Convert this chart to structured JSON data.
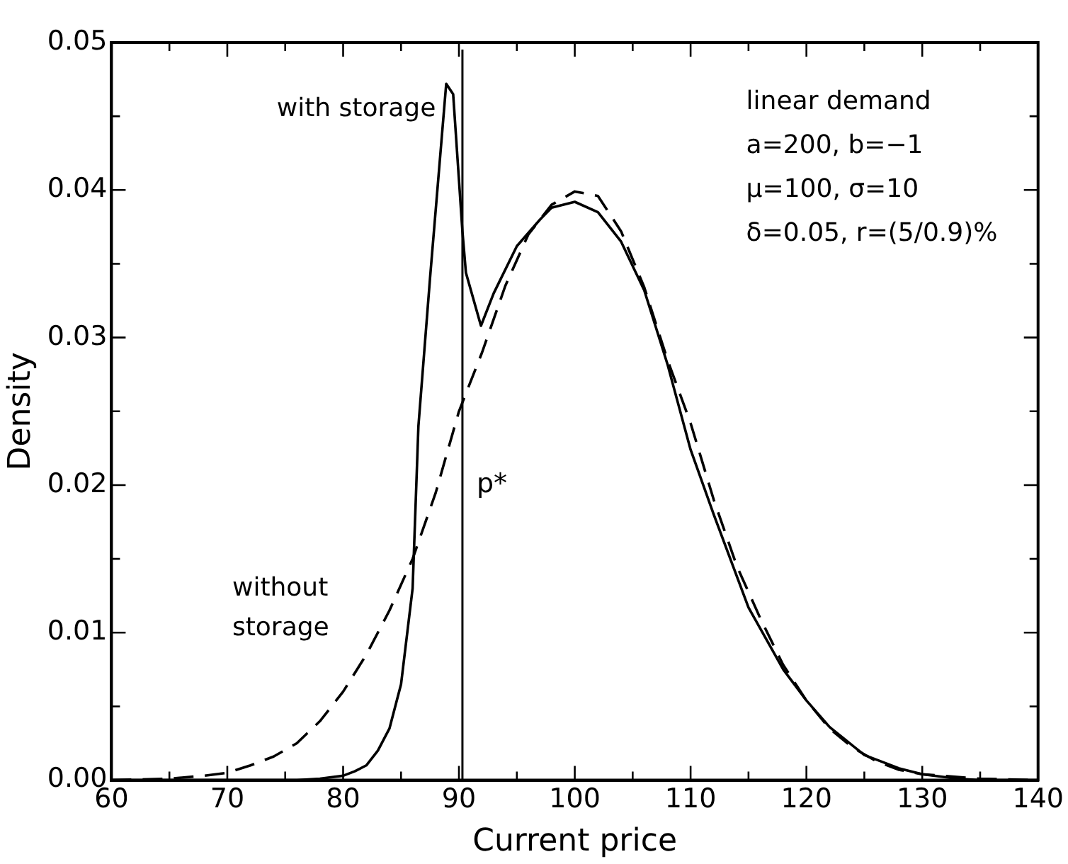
{
  "chart_data": {
    "type": "line",
    "xlabel": "Current price",
    "ylabel": "Density",
    "xlim": [
      60,
      140
    ],
    "ylim": [
      0,
      0.05
    ],
    "xticks": [
      60,
      {
        "value": 65,
        "label": null
      },
      70,
      {
        "value": 75,
        "label": null
      },
      80,
      {
        "value": 85,
        "label": null
      },
      90,
      {
        "value": 95,
        "label": null
      },
      100,
      {
        "value": 105,
        "label": null
      },
      110,
      {
        "value": 115,
        "label": null
      },
      120,
      {
        "value": 125,
        "label": null
      },
      130,
      {
        "value": 135,
        "label": null
      },
      140
    ],
    "yticks": [
      {
        "value": 0,
        "label": "0.00"
      },
      {
        "value": 0.005,
        "label": null
      },
      {
        "value": 0.01,
        "label": "0.01"
      },
      {
        "value": 0.015,
        "label": null
      },
      {
        "value": 0.02,
        "label": "0.02"
      },
      {
        "value": 0.025,
        "label": null
      },
      {
        "value": 0.03,
        "label": "0.03"
      },
      {
        "value": 0.035,
        "label": null
      },
      {
        "value": 0.04,
        "label": "0.04"
      },
      {
        "value": 0.045,
        "label": null
      },
      {
        "value": 0.05,
        "label": "0.05"
      }
    ],
    "grid": false,
    "marker": "none",
    "series": [
      {
        "name": "with storage",
        "color": "#000000",
        "line_style": "solid",
        "x": [
          60,
          70,
          76,
          78,
          80,
          81,
          82,
          83,
          84,
          85,
          86,
          86.5,
          87.5,
          88.9,
          89.5,
          90.3,
          90.6,
          91.9,
          93,
          95,
          97,
          98,
          100,
          102,
          104,
          106,
          108,
          110,
          112,
          115,
          118,
          120,
          122,
          125,
          128,
          130,
          133,
          135,
          140
        ],
        "values": [
          0,
          0,
          0,
          0.0001,
          0.0003,
          0.0006,
          0.001,
          0.002,
          0.0035,
          0.0065,
          0.013,
          0.024,
          0.034,
          0.0472,
          0.0465,
          0.0372,
          0.0344,
          0.0308,
          0.033,
          0.0362,
          0.038,
          0.0388,
          0.0392,
          0.0385,
          0.0365,
          0.0332,
          0.0282,
          0.0224,
          0.018,
          0.0117,
          0.0075,
          0.0054,
          0.0036,
          0.0017,
          0.0008,
          0.0004,
          0.0001,
          0,
          0
        ]
      },
      {
        "name": "without storage",
        "color": "#000000",
        "line_style": "dashed",
        "x": [
          60,
          65,
          68,
          70,
          72,
          74,
          76,
          78,
          80,
          82,
          84,
          86,
          88,
          90,
          92,
          94,
          96,
          98,
          100,
          102,
          104,
          106,
          108,
          110,
          112,
          114,
          116,
          118,
          120,
          122,
          124,
          126,
          128,
          130,
          135,
          140
        ],
        "values": [
          0,
          0.0001,
          0.0003,
          0.0005,
          0.001,
          0.0016,
          0.0025,
          0.004,
          0.006,
          0.0085,
          0.0115,
          0.015,
          0.0195,
          0.025,
          0.029,
          0.0335,
          0.037,
          0.039,
          0.0399,
          0.0396,
          0.0372,
          0.0334,
          0.0285,
          0.0242,
          0.019,
          0.0145,
          0.011,
          0.0078,
          0.0054,
          0.0035,
          0.0022,
          0.0013,
          0.0007,
          0.0004,
          0.0001,
          0
        ]
      }
    ],
    "ref_lines": [
      {
        "axis": "x",
        "value": 90.3,
        "label": "p*",
        "color": "#000000",
        "line_style": "solid"
      }
    ],
    "annotations": [
      "linear demand",
      "a=200, b=−1",
      "μ=100, σ=10",
      "δ=0.05, r=(5/0.9)%"
    ]
  }
}
